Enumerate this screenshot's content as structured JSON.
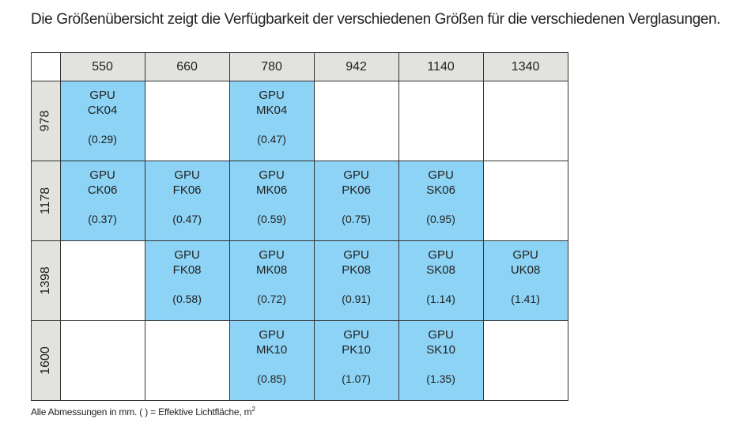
{
  "title": "Die Größenübersicht zeigt die Verfügbarkeit der verschiedenen Größen für die verschiedenen Verglasungen.",
  "table": {
    "columns": [
      "550",
      "660",
      "780",
      "942",
      "1140",
      "1340"
    ],
    "rows": [
      {
        "height": "978",
        "cells": [
          {
            "line1": "GPU",
            "line2": "CK04",
            "area": "(0.29)"
          },
          null,
          {
            "line1": "GPU",
            "line2": "MK04",
            "area": "(0.47)"
          },
          null,
          null,
          null
        ]
      },
      {
        "height": "1178",
        "cells": [
          {
            "line1": "GPU",
            "line2": "CK06",
            "area": "(0.37)"
          },
          {
            "line1": "GPU",
            "line2": "FK06",
            "area": "(0.47)"
          },
          {
            "line1": "GPU",
            "line2": "MK06",
            "area": "(0.59)"
          },
          {
            "line1": "GPU",
            "line2": "PK06",
            "area": "(0.75)"
          },
          {
            "line1": "GPU",
            "line2": "SK06",
            "area": "(0.95)"
          },
          null
        ]
      },
      {
        "height": "1398",
        "cells": [
          null,
          {
            "line1": "GPU",
            "line2": "FK08",
            "area": "(0.58)"
          },
          {
            "line1": "GPU",
            "line2": "MK08",
            "area": "(0.72)"
          },
          {
            "line1": "GPU",
            "line2": "PK08",
            "area": "(0.91)"
          },
          {
            "line1": "GPU",
            "line2": "SK08",
            "area": "(1.14)"
          },
          {
            "line1": "GPU",
            "line2": "UK08",
            "area": "(1.41)"
          }
        ]
      },
      {
        "height": "1600",
        "cells": [
          null,
          null,
          {
            "line1": "GPU",
            "line2": "MK10",
            "area": "(0.85)"
          },
          {
            "line1": "GPU",
            "line2": "PK10",
            "area": "(1.07)"
          },
          {
            "line1": "GPU",
            "line2": "SK10",
            "area": "(1.35)"
          },
          null
        ]
      }
    ]
  },
  "note": {
    "text": "Alle Abmessungen in mm.   ( ) = Effektive Lichtfläche, m",
    "sup": "2"
  },
  "colors": {
    "available": "#8dd3f5",
    "header": "#e2e2df"
  }
}
